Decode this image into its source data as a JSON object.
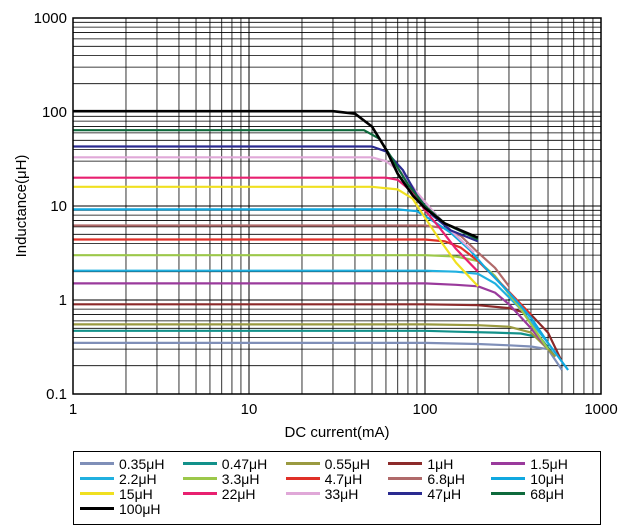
{
  "chart_data": {
    "type": "line",
    "title": "",
    "xlabel": "DC current(mA)",
    "ylabel": "Inductance(μH)",
    "xscale": "log",
    "yscale": "log",
    "xlim": [
      1,
      1000
    ],
    "ylim": [
      0.1,
      1000
    ],
    "grid": true,
    "legend_position": "bottom",
    "x_ticks": [
      "1",
      "10",
      "100",
      "1000"
    ],
    "y_ticks": [
      "0.1",
      "1",
      "10",
      "100",
      "1000"
    ],
    "series": [
      {
        "name": "0.35μH",
        "color": "#7f8fb8",
        "x": [
          1,
          100,
          200,
          300,
          400,
          500,
          600
        ],
        "y": [
          0.35,
          0.35,
          0.34,
          0.33,
          0.32,
          0.3,
          0.18
        ]
      },
      {
        "name": "0.47μH",
        "color": "#12918a",
        "x": [
          1,
          100,
          150,
          250,
          350,
          450,
          550
        ],
        "y": [
          0.47,
          0.47,
          0.46,
          0.45,
          0.44,
          0.4,
          0.25
        ]
      },
      {
        "name": "0.55μH",
        "color": "#9a9a40",
        "x": [
          1,
          100,
          200,
          300,
          400,
          500,
          550
        ],
        "y": [
          0.55,
          0.55,
          0.54,
          0.52,
          0.45,
          0.3,
          0.25
        ]
      },
      {
        "name": "1μH",
        "color": "#8c2a2a",
        "x": [
          1,
          100,
          200,
          300,
          400,
          500,
          600
        ],
        "y": [
          0.9,
          0.9,
          0.88,
          0.82,
          0.7,
          0.45,
          0.22
        ]
      },
      {
        "name": "1.5μH",
        "color": "#9a3a9c",
        "x": [
          1,
          100,
          150,
          200,
          250,
          300,
          400,
          500
        ],
        "y": [
          1.5,
          1.5,
          1.45,
          1.4,
          1.2,
          0.9,
          0.5,
          0.3
        ]
      },
      {
        "name": "2.2μH",
        "color": "#20b0e0",
        "x": [
          1,
          100,
          150,
          200,
          250,
          350,
          500
        ],
        "y": [
          2.05,
          2.05,
          2.0,
          1.9,
          1.5,
          0.8,
          0.35
        ]
      },
      {
        "name": "3.3μH",
        "color": "#9cc84a",
        "x": [
          1,
          100,
          150,
          200,
          250,
          350,
          500
        ],
        "y": [
          3.0,
          3.0,
          2.9,
          2.6,
          1.8,
          0.8,
          0.3
        ]
      },
      {
        "name": "4.7μH",
        "color": "#e03028",
        "x": [
          1,
          100,
          130,
          160,
          200,
          280,
          400
        ],
        "y": [
          4.4,
          4.4,
          4.2,
          3.6,
          2.6,
          1.4,
          0.7
        ]
      },
      {
        "name": "6.8μH",
        "color": "#b06a6a",
        "x": [
          1,
          100,
          130,
          160,
          200,
          250,
          300
        ],
        "y": [
          6.2,
          6.2,
          5.8,
          4.8,
          3.2,
          2.2,
          1.4
        ]
      },
      {
        "name": "10μH",
        "color": "#10a8e0",
        "x": [
          1,
          70,
          90,
          110,
          140,
          180,
          220,
          300,
          400,
          500,
          650
        ],
        "y": [
          9.2,
          9.2,
          8.8,
          7.0,
          5.2,
          3.4,
          2.2,
          1.2,
          0.65,
          0.35,
          0.18
        ]
      },
      {
        "name": "15μH",
        "color": "#f0e020",
        "x": [
          1,
          50,
          70,
          85,
          100,
          120,
          150,
          200
        ],
        "y": [
          16,
          16,
          15,
          12,
          7.5,
          4.5,
          2.5,
          1.4
        ]
      },
      {
        "name": "22μH",
        "color": "#e82070",
        "x": [
          1,
          60,
          70,
          85,
          100,
          120,
          150,
          200
        ],
        "y": [
          20,
          20,
          19,
          14,
          9,
          6,
          3.5,
          2.0
        ]
      },
      {
        "name": "33μH",
        "color": "#e0a8d8",
        "x": [
          1,
          50,
          60,
          75,
          90,
          110,
          140,
          190
        ],
        "y": [
          33,
          33,
          30,
          22,
          14,
          9,
          5.5,
          3.2
        ]
      },
      {
        "name": "47μH",
        "color": "#2a2a90",
        "x": [
          1,
          50,
          60,
          75,
          90,
          110,
          140,
          200
        ],
        "y": [
          43,
          43,
          38,
          24,
          13,
          8,
          5.5,
          4.2
        ]
      },
      {
        "name": "68μH",
        "color": "#0e6a3c",
        "x": [
          1,
          45,
          55,
          65,
          80,
          100,
          130,
          200
        ],
        "y": [
          64,
          64,
          52,
          32,
          17,
          10,
          6.5,
          4.4
        ]
      },
      {
        "name": "100μH",
        "color": "#000000",
        "x": [
          1,
          30,
          40,
          50,
          60,
          70,
          85,
          100,
          130,
          200
        ],
        "y": [
          102,
          102,
          96,
          70,
          40,
          22,
          13,
          9.5,
          6.5,
          4.6
        ]
      }
    ]
  }
}
